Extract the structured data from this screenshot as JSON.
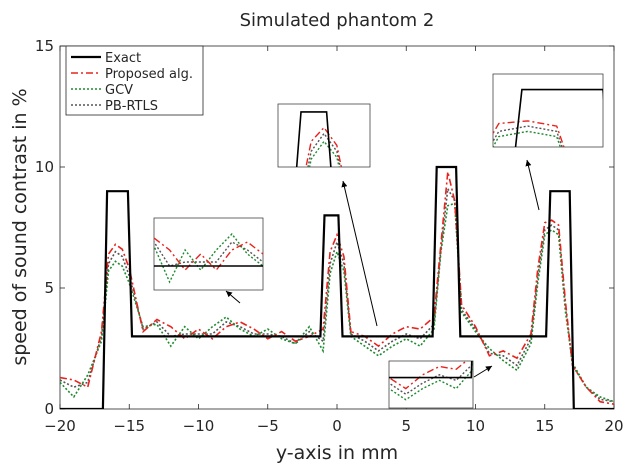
{
  "chart_data": {
    "type": "line",
    "title": "Simulated phantom 2",
    "xlabel": "y-axis in mm",
    "ylabel": "speed of sound contrast in %",
    "xlim": [
      -20,
      20
    ],
    "ylim": [
      0,
      15
    ],
    "xticks": [
      -20,
      -15,
      -10,
      -5,
      0,
      5,
      10,
      15,
      20
    ],
    "xtick_labels": [
      "−20",
      "−15",
      "−10",
      "−5",
      "0",
      "5",
      "10",
      "15",
      "20"
    ],
    "yticks": [
      0,
      5,
      10,
      15
    ],
    "ytick_labels": [
      "0",
      "5",
      "10",
      "15"
    ],
    "grid": false,
    "legend": "top-left",
    "series": [
      {
        "name": "Exact",
        "color": "#000000",
        "style": "solid",
        "x": [
          -20,
          -16.9,
          -16.6,
          -15.1,
          -14.8,
          15.1,
          15.4,
          16.8,
          17.1,
          20
        ],
        "y": [
          0,
          0,
          9,
          9,
          3,
          3,
          9,
          9,
          0,
          0
        ],
        "peaks": [
          {
            "x": [
              -1.2,
              -0.9,
              0.1,
              0.4
            ],
            "y": [
              3,
              8,
              8,
              3
            ]
          },
          {
            "x": [
              6.9,
              7.2,
              8.6,
              8.9
            ],
            "y": [
              3,
              10,
              10,
              3
            ]
          }
        ]
      },
      {
        "name": "Proposed alg.",
        "color": "#e8231e",
        "style": "dashdot",
        "x": [
          -20,
          -19,
          -18,
          -17,
          -16.5,
          -16,
          -15.5,
          -15,
          -14,
          -13,
          -12,
          -11,
          -10,
          -9,
          -8,
          -7,
          -6,
          -5,
          -4,
          -3,
          -2,
          -1,
          -0.5,
          0,
          0.5,
          1,
          2,
          3,
          4,
          5,
          6,
          7,
          7.5,
          8,
          8.5,
          9,
          10,
          11,
          12,
          13,
          14,
          14.5,
          15,
          15.5,
          16,
          16.5,
          17,
          18,
          19,
          20
        ],
        "y": [
          1.3,
          1.2,
          0.9,
          3.2,
          6.4,
          6.8,
          6.6,
          5.8,
          3.2,
          3.7,
          3.4,
          2.9,
          3.3,
          2.9,
          3.4,
          3.6,
          3.3,
          2.9,
          3.2,
          2.8,
          3.0,
          3.3,
          6.5,
          7.2,
          6.3,
          3.2,
          3.0,
          2.6,
          3.1,
          3.4,
          3.3,
          3.8,
          6.8,
          9.8,
          8.6,
          4.3,
          3.4,
          2.2,
          2.4,
          2.1,
          3.1,
          5.8,
          7.7,
          7.8,
          7.6,
          4.4,
          1.8,
          0.9,
          0.3,
          0.2
        ]
      },
      {
        "name": "GCV",
        "color": "#1e8a2e",
        "style": "dotted",
        "x": [
          -20,
          -19,
          -18,
          -17,
          -16.5,
          -16,
          -15.5,
          -15,
          -14,
          -13,
          -12,
          -11,
          -10,
          -9,
          -8,
          -7,
          -6,
          -5,
          -4,
          -3,
          -2,
          -1,
          -0.5,
          0,
          0.5,
          1,
          2,
          3,
          4,
          5,
          6,
          7,
          7.5,
          8,
          8.5,
          9,
          10,
          11,
          12,
          13,
          14,
          14.5,
          15,
          15.5,
          16,
          16.5,
          17,
          18,
          19,
          20
        ],
        "y": [
          1.1,
          0.5,
          1.4,
          2.8,
          5.7,
          6.1,
          5.9,
          5.2,
          3.4,
          3.5,
          2.6,
          3.4,
          2.9,
          3.4,
          3.8,
          3.3,
          3.0,
          3.3,
          2.9,
          2.7,
          3.4,
          2.4,
          5.6,
          6.5,
          5.7,
          3.0,
          2.6,
          2.2,
          2.6,
          2.9,
          2.6,
          3.3,
          6.5,
          8.4,
          8.5,
          4.0,
          3.2,
          2.5,
          2.0,
          1.6,
          2.7,
          5.2,
          7.2,
          7.4,
          7.2,
          4.0,
          1.9,
          0.9,
          0.5,
          0.3
        ]
      },
      {
        "name": "PB-RTLS",
        "color": "#555555",
        "style": "dotted",
        "x": [
          -20,
          -19,
          -18,
          -17,
          -16.5,
          -16,
          -15.5,
          -15,
          -14,
          -13,
          -12,
          -11,
          -10,
          -9,
          -8,
          -7,
          -6,
          -5,
          -4,
          -3,
          -2,
          -1,
          -0.5,
          0,
          0.5,
          1,
          2,
          3,
          4,
          5,
          6,
          7,
          7.5,
          8,
          8.5,
          9,
          10,
          11,
          12,
          13,
          14,
          14.5,
          15,
          15.5,
          16,
          16.5,
          17,
          18,
          19,
          20
        ],
        "y": [
          1.2,
          0.9,
          1.1,
          3.0,
          6.0,
          6.5,
          6.3,
          5.5,
          3.3,
          3.6,
          3.0,
          3.1,
          3.1,
          3.1,
          3.6,
          3.4,
          3.1,
          3.1,
          3.0,
          2.7,
          3.2,
          2.8,
          6.0,
          6.9,
          6.0,
          3.1,
          2.8,
          2.4,
          2.8,
          3.1,
          2.9,
          3.5,
          6.6,
          9.1,
          8.6,
          4.1,
          3.3,
          2.3,
          2.2,
          1.8,
          2.9,
          5.5,
          7.4,
          7.6,
          7.4,
          4.2,
          1.8,
          0.9,
          0.4,
          0.3
        ]
      }
    ]
  }
}
